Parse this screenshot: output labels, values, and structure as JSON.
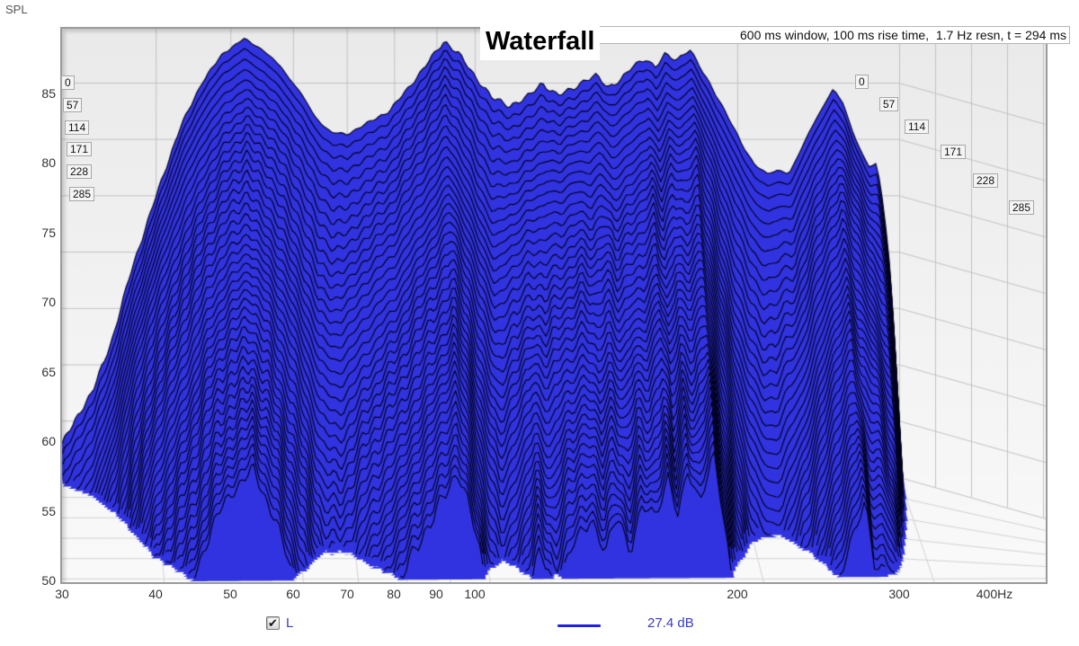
{
  "title": "Waterfall",
  "params_text": "600 ms window, 100 ms rise time,  1.7 Hz resn, t = 294 ms",
  "axis": {
    "spl_label": "SPL",
    "y_ticks": [
      "85",
      "80",
      "75",
      "70",
      "65",
      "60",
      "55",
      "50"
    ],
    "x_ticks": [
      "30",
      "40",
      "50",
      "60",
      "70",
      "80",
      "90",
      "100",
      "200",
      "300",
      "400Hz"
    ],
    "time_ticks_left": [
      "0",
      "57",
      "114",
      "171",
      "228",
      "285"
    ],
    "time_ticks_right": [
      "0",
      "57",
      "114",
      "171",
      "228",
      "285"
    ]
  },
  "legend": {
    "check_icon": "✔",
    "channel": "L",
    "value": "27.4 dB"
  },
  "colors": {
    "surface_fill": "#3133e0",
    "contour": "#000018",
    "legend_blue": "#3a3acc",
    "legend_line": "#2222dd",
    "wall_line": "#c2c2c2",
    "floor_line": "#d2d2d2",
    "bg_top": "#eaeaea",
    "bg_bottom": "#fafafa"
  },
  "chart_data": {
    "type": "waterfall-3d-surface",
    "title": "Waterfall",
    "window_info": "600 ms window, 100 ms rise time,  1.7 Hz resn, t = 294 ms",
    "freq_axis": {
      "unit": "Hz",
      "min": 30,
      "max": 400,
      "scale": "log",
      "ticks": [
        30,
        40,
        50,
        60,
        70,
        80,
        90,
        100,
        200,
        300,
        400
      ],
      "data_max": 300
    },
    "spl_axis": {
      "label": "SPL",
      "unit": "dB",
      "min": 50,
      "max": 85,
      "tick_step": 5
    },
    "time_axis": {
      "unit": "ms",
      "ticks": [
        0,
        57,
        114,
        171,
        228,
        285
      ],
      "total_ms": 294,
      "num_slices": 46
    },
    "legend": {
      "channel": "L",
      "enabled": true,
      "level": "27.4 dB"
    },
    "envelope_t0": {
      "comment": "SPL (dB) of the rear (t=0) slice vs frequency (Hz), read from silhouette",
      "freq": [
        30,
        33,
        35,
        37,
        40,
        43,
        46,
        49,
        52,
        55,
        58,
        61,
        64,
        67,
        70,
        74,
        79,
        84,
        89,
        92,
        96,
        100,
        105,
        110,
        115,
        120,
        125,
        130,
        135,
        139,
        143,
        148,
        153,
        158,
        162,
        166,
        171,
        177,
        182,
        188,
        195,
        202,
        209,
        216,
        222,
        228,
        234,
        240,
        247,
        255,
        261,
        267,
        273,
        279,
        284,
        289,
        293,
        297,
        300
      ],
      "spl_db": [
        53,
        57.5,
        62,
        68,
        75,
        81,
        85,
        87.5,
        88.8,
        88,
        86.5,
        84.5,
        82,
        80.5,
        80.3,
        81.2,
        82.5,
        85,
        87.5,
        88.8,
        87.5,
        85.5,
        83.5,
        82.8,
        83.6,
        85,
        84,
        84.6,
        85.4,
        85.7,
        84.6,
        85.2,
        86.4,
        87,
        86.2,
        87.4,
        87,
        88,
        86.4,
        84.6,
        82.2,
        79.8,
        77.8,
        76.8,
        77.2,
        76.8,
        78.5,
        80.5,
        82.5,
        84.4,
        83.2,
        81,
        79,
        77.6,
        77.9,
        74,
        69,
        62,
        54
      ]
    },
    "decay_total_db": {
      "comment": "total SPL drop (dB) from t=0 to t=294ms vs frequency; modal peaks decay slowly",
      "freq": [
        30,
        35,
        39,
        43,
        47,
        52,
        56,
        60,
        64,
        68,
        72,
        77,
        82,
        87,
        92,
        96,
        100,
        104,
        109,
        114,
        119,
        124,
        130,
        135,
        139,
        144,
        148,
        153,
        158,
        162,
        166,
        171,
        177,
        183,
        190,
        197,
        204,
        211,
        218,
        224,
        230,
        236,
        242,
        248,
        255,
        261,
        267,
        273,
        279,
        285,
        291,
        296,
        300
      ],
      "drop_db": [
        38,
        34,
        30,
        32,
        30,
        29,
        33,
        38,
        43,
        41,
        36,
        33,
        31,
        30,
        29,
        33,
        38,
        41,
        35,
        31,
        36,
        31,
        29,
        33,
        30,
        32,
        29,
        31,
        28,
        31,
        28,
        30,
        27,
        33,
        40,
        45,
        47,
        46,
        42,
        38,
        34,
        31,
        30,
        29,
        28,
        32,
        30,
        29,
        31,
        36,
        41,
        44,
        46
      ]
    }
  }
}
